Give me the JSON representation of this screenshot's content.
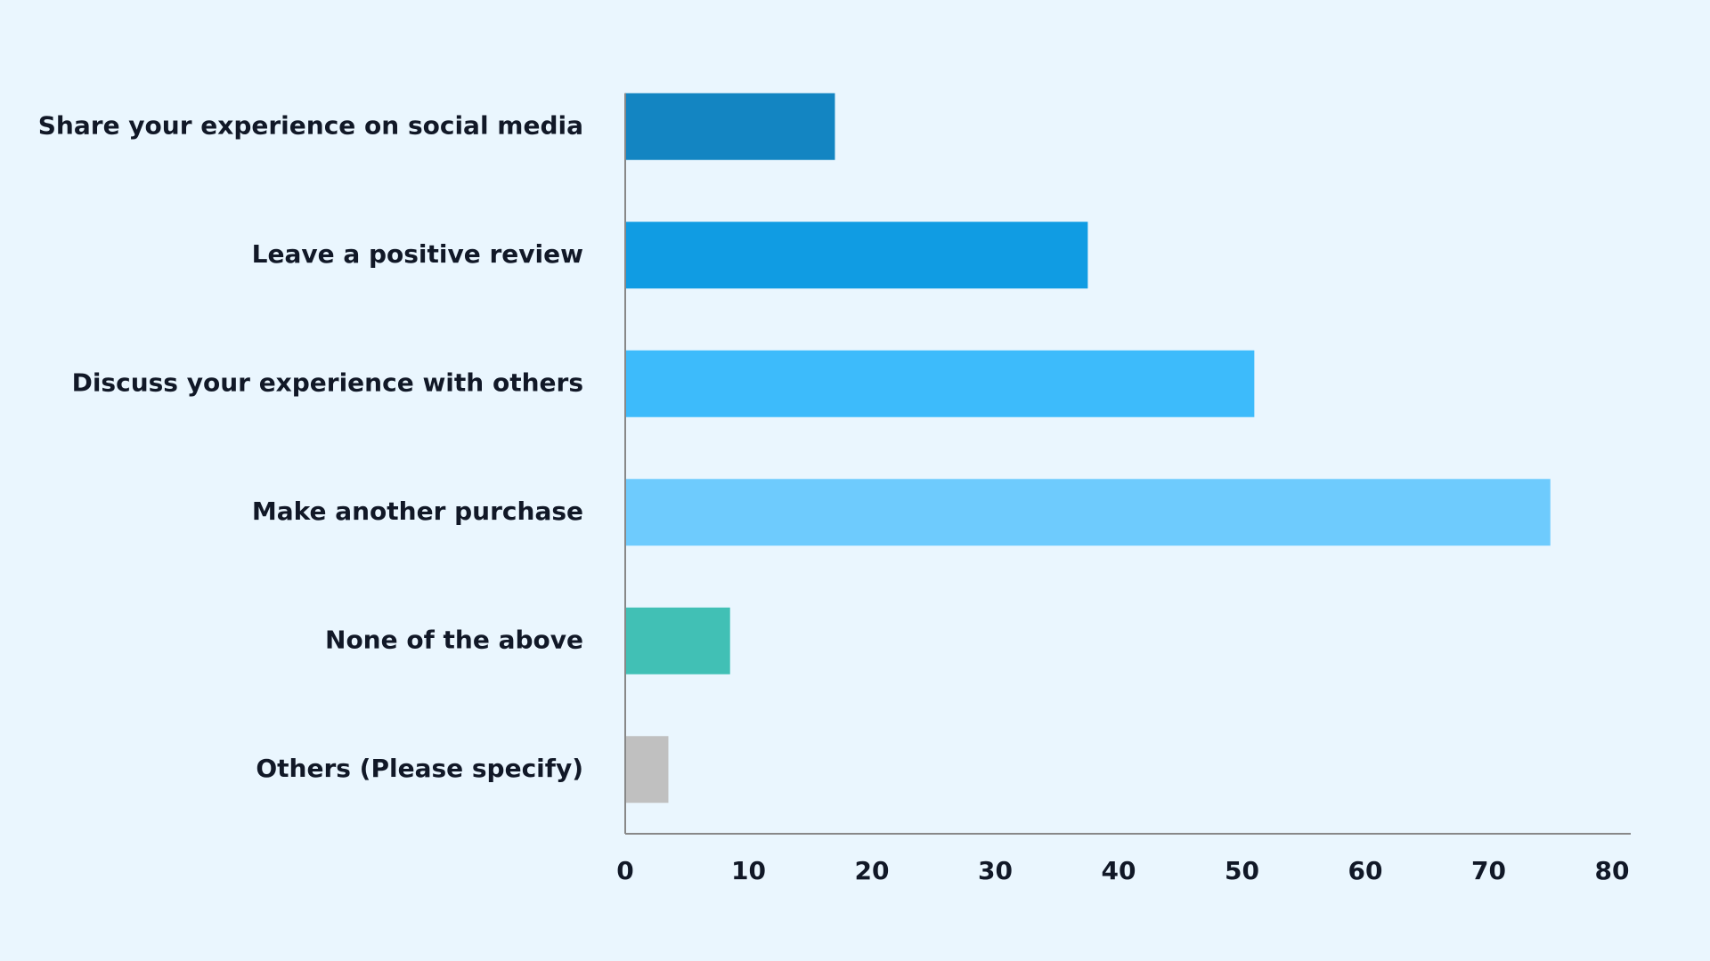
{
  "chart_data": {
    "type": "bar",
    "orientation": "horizontal",
    "categories": [
      "Share your experience on social media",
      "Leave a positive review",
      "Discuss your experience with others",
      "Make another purchase",
      "None of the above",
      "Others (Please specify)"
    ],
    "values": [
      17,
      37.5,
      51,
      75,
      8.5,
      3.5
    ],
    "colors": [
      "#1385c2",
      "#109ce3",
      "#3dbbfb",
      "#6ecbfd",
      "#41c0b5",
      "#c0c0c0"
    ],
    "xlim": [
      0,
      80
    ],
    "xticks": [
      0,
      10,
      20,
      30,
      40,
      50,
      60,
      70,
      80
    ],
    "grid": false
  }
}
